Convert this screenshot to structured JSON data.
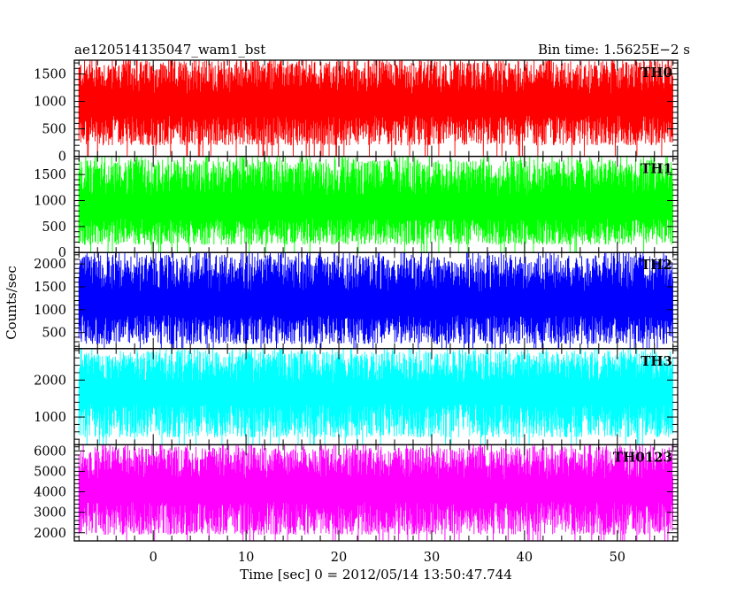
{
  "header": {
    "title": "ae120514135047_wam1_bst",
    "bin_time": "Bin time: 1.5625E−2 s"
  },
  "axes": {
    "xlabel": "Time [sec] 0 = 2012/05/14 13:50:47.744",
    "ylabel": "Counts/sec"
  },
  "chart_data": {
    "type": "line",
    "x_range": [
      -8.5,
      56.5
    ],
    "data_span": [
      -8.0,
      56.0
    ],
    "bin_time_s": 0.015625,
    "x_ticks": [
      0,
      10,
      20,
      30,
      40,
      50
    ],
    "x_tick_labels": [
      "0",
      "10",
      "20",
      "30",
      "40",
      "50"
    ],
    "x_minor_step": 2,
    "panels": [
      {
        "name": "TH0",
        "color": "#ff0000",
        "ylim": [
          0,
          1750
        ],
        "y_ticks": [
          0,
          500,
          1000,
          1500
        ],
        "y_minor_step": 100,
        "approx_level": 800,
        "approx_noise_low": 200,
        "approx_noise_high": 1750
      },
      {
        "name": "TH1",
        "color": "#00ff00",
        "ylim": [
          0,
          1850
        ],
        "y_ticks": [
          0,
          500,
          1000,
          1500
        ],
        "y_minor_step": 100,
        "approx_level": 700,
        "approx_noise_low": 150,
        "approx_noise_high": 1800
      },
      {
        "name": "TH2",
        "color": "#0000ff",
        "ylim": [
          150,
          2250
        ],
        "y_ticks": [
          500,
          1000,
          1500,
          2000
        ],
        "y_minor_step": 100,
        "approx_level": 950,
        "approx_noise_low": 250,
        "approx_noise_high": 2200
      },
      {
        "name": "TH3",
        "color": "#00ffff",
        "ylim": [
          250,
          2850
        ],
        "y_ticks": [
          1000,
          2000
        ],
        "y_minor_step": 200,
        "approx_level": 1450,
        "approx_noise_low": 450,
        "approx_noise_high": 2800
      },
      {
        "name": "TH0123",
        "color": "#ff00ff",
        "ylim": [
          1600,
          6300
        ],
        "y_ticks": [
          2000,
          3000,
          4000,
          5000,
          6000
        ],
        "y_minor_step": 200,
        "approx_level": 3700,
        "approx_noise_low": 1900,
        "approx_noise_high": 6200
      }
    ]
  }
}
